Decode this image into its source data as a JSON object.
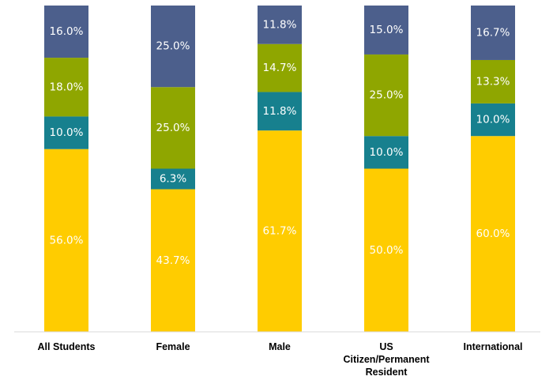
{
  "chart_data": {
    "type": "bar",
    "stacked": true,
    "percent": true,
    "title": "",
    "xlabel": "",
    "ylabel": "",
    "ylim": [
      0,
      100
    ],
    "grid": false,
    "legend": "none",
    "categories": [
      [
        "All Students"
      ],
      [
        "Female"
      ],
      [
        "Male"
      ],
      [
        "US",
        "Citizen/Permanent",
        "Resident"
      ],
      [
        "International"
      ]
    ],
    "series": [
      {
        "color": "#FFCC00",
        "values": [
          56.0,
          43.7,
          61.7,
          50.0,
          60.0
        ],
        "labels": [
          "56.0%",
          "43.7%",
          "61.7%",
          "50.0%",
          "60.0%"
        ]
      },
      {
        "color": "#17808E",
        "values": [
          10.0,
          6.3,
          11.8,
          10.0,
          10.0
        ],
        "labels": [
          "10.0%",
          "6.3%",
          "11.8%",
          "10.0%",
          "10.0%"
        ]
      },
      {
        "color": "#8FA600",
        "values": [
          18.0,
          25.0,
          14.7,
          25.0,
          13.3
        ],
        "labels": [
          "18.0%",
          "25.0%",
          "14.7%",
          "25.0%",
          "13.3%"
        ]
      },
      {
        "color": "#4C5F8C",
        "values": [
          16.0,
          25.0,
          11.8,
          15.0,
          16.7
        ],
        "labels": [
          "16.0%",
          "25.0%",
          "11.8%",
          "15.0%",
          "16.7%"
        ]
      }
    ]
  }
}
